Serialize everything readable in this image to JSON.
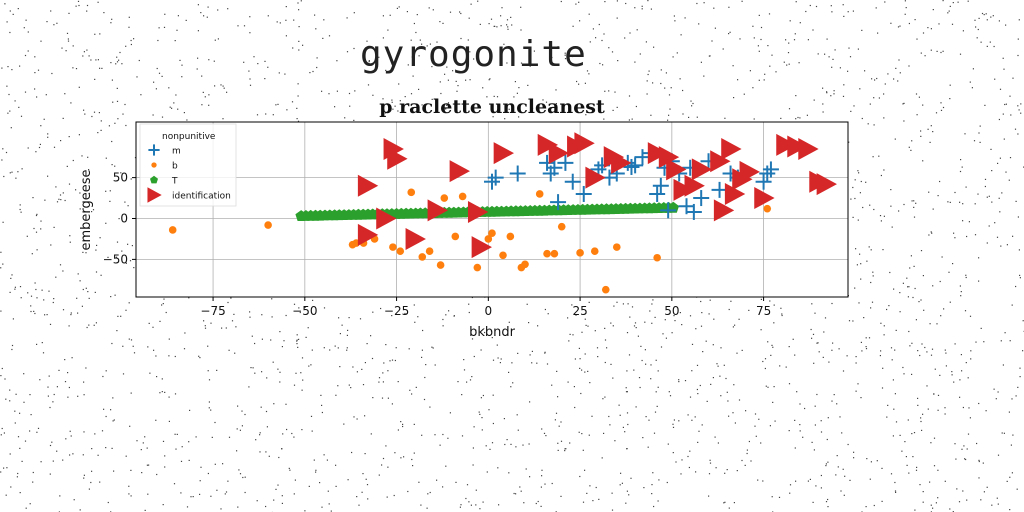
{
  "figure": {
    "suptitle": "gyrogonite"
  },
  "chart_data": {
    "type": "scatter",
    "title": "p raclette uncleanest",
    "xlabel": "bkbndr",
    "ylabel": "embergeese",
    "xlim": [
      -96,
      98
    ],
    "ylim": [
      -96,
      118
    ],
    "xticks": [
      -75,
      -50,
      -25,
      0,
      25,
      50,
      75
    ],
    "yticks": [
      -50,
      0,
      50
    ],
    "grid": true,
    "legend": {
      "title": "nonpunitive",
      "placement": "upper left"
    },
    "series": [
      {
        "name": "m",
        "marker": "plus",
        "color": "#1f77b4",
        "x": [
          1,
          2,
          8,
          16,
          17,
          18,
          19,
          21,
          23,
          26,
          30,
          31,
          33,
          35,
          38,
          39,
          40,
          42,
          44,
          46,
          47,
          48,
          50,
          52,
          54,
          56,
          58,
          60,
          63,
          66,
          68,
          75,
          76,
          77,
          55,
          49
        ],
        "y": [
          45,
          50,
          55,
          68,
          55,
          62,
          20,
          68,
          45,
          30,
          60,
          65,
          50,
          55,
          68,
          63,
          65,
          75,
          80,
          30,
          40,
          62,
          70,
          55,
          15,
          8,
          25,
          70,
          35,
          55,
          50,
          45,
          55,
          60,
          62,
          10
        ]
      },
      {
        "name": "b",
        "marker": "dot",
        "color": "#ff7f0e",
        "x": [
          -86,
          -60,
          -37,
          -36,
          -34,
          -31,
          -26,
          -24,
          -21,
          -18,
          -16,
          -13,
          -12,
          -9,
          -7,
          -3,
          0,
          1,
          4,
          6,
          9,
          10,
          14,
          16,
          18,
          20,
          25,
          29,
          32,
          35,
          46,
          76
        ],
        "y": [
          -14,
          -8,
          -32,
          -30,
          -30,
          -25,
          -35,
          -40,
          32,
          -47,
          -40,
          -57,
          25,
          -22,
          27,
          -60,
          -25,
          -18,
          -45,
          -22,
          -60,
          -56,
          30,
          -43,
          -43,
          -10,
          -42,
          -40,
          -87,
          -35,
          -48,
          12
        ]
      },
      {
        "name": "T",
        "marker": "pentagon",
        "color": "#2ca02c",
        "x_from": -51,
        "x_to": 51,
        "x_step": 1.3,
        "slope": 0.1,
        "y_at_zero": 8
      },
      {
        "name": "identification",
        "marker": "triangle-right",
        "color": "#d62728",
        "x": [
          -26,
          -25,
          -33,
          -8,
          4,
          16,
          19,
          24,
          26,
          29,
          34,
          36,
          46,
          49,
          51,
          53,
          56,
          58,
          63,
          64,
          66,
          67,
          69,
          71,
          75,
          81,
          84,
          87,
          90,
          92,
          -3,
          -28,
          -14,
          -20,
          -33,
          -2
        ],
        "y": [
          85,
          73,
          40,
          58,
          80,
          90,
          80,
          88,
          92,
          50,
          75,
          68,
          80,
          75,
          60,
          35,
          40,
          60,
          70,
          10,
          85,
          30,
          48,
          57,
          25,
          90,
          88,
          85,
          45,
          42,
          8,
          0,
          10,
          -25,
          -20,
          -35
        ]
      }
    ]
  }
}
